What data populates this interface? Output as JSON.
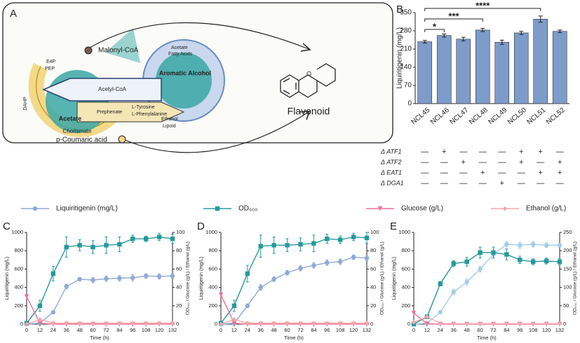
{
  "diagram": {
    "panel": "A",
    "labels": [
      "Malonyl-CoA",
      "E4P",
      "PEP",
      "DAHP",
      "Chorismate",
      "Acetate",
      "Acetyl-CoA",
      "Prephenate",
      "L-Tyrosine",
      "L-Phenylalanine",
      "Aromatic Alcohol",
      "Acetate",
      "Fatty Acids",
      "Ethanol",
      "Lipoid",
      "p-Coumaric acid",
      "Flavonoid"
    ]
  },
  "chart_data": [
    {
      "type": "bar",
      "panel": "B",
      "y_label": "Liquiritigenin (mg/L)",
      "categories": [
        "NCL45",
        "NCL46",
        "NCL47",
        "NCL48",
        "NCL49",
        "NCL50",
        "NCL51",
        "NCL52"
      ],
      "values": [
        238,
        262,
        248,
        283,
        236,
        272,
        325,
        278
      ],
      "errors": [
        5,
        6,
        7,
        6,
        8,
        6,
        12,
        5
      ],
      "color": "#7d9cc9",
      "ylim": [
        0,
        350
      ],
      "yticks": [
        0,
        70,
        140,
        210,
        280,
        350
      ],
      "significance": [
        {
          "text": "*",
          "from": 0,
          "to": 1
        },
        {
          "text": "***",
          "from": 0,
          "to": 3
        },
        {
          "text": "****",
          "from": 0,
          "to": 6
        }
      ],
      "genotype": [
        {
          "label": "Δ ATF1",
          "marks": [
            "—",
            "+",
            "—",
            "—",
            "—",
            "+",
            "+",
            "—"
          ]
        },
        {
          "label": "Δ ATF2",
          "marks": [
            "—",
            "—",
            "+",
            "—",
            "—",
            "+",
            "—",
            "+"
          ]
        },
        {
          "label": "Δ EAT1",
          "marks": [
            "—",
            "—",
            "—",
            "+",
            "—",
            "—",
            "+",
            "+"
          ]
        },
        {
          "label": "Δ DGA1",
          "marks": [
            "—",
            "—",
            "—",
            "—",
            "+",
            "—",
            "—",
            "—"
          ]
        }
      ]
    },
    {
      "type": "line",
      "panel": "C",
      "x_label": "Time (h)",
      "y_label": "Liquiritigenin (mg/L)",
      "y2_label": "OD₆₀₀ / Glucose (g/L) / Ethanol (g/L)",
      "x": [
        0,
        12,
        24,
        36,
        48,
        60,
        72,
        84,
        96,
        108,
        120,
        132
      ],
      "xlim": [
        0,
        132
      ],
      "xticks": [
        0,
        12,
        24,
        36,
        48,
        60,
        72,
        84,
        96,
        108,
        120,
        132
      ],
      "ylim": [
        0,
        1000
      ],
      "yticks": [
        0,
        200,
        400,
        600,
        800,
        1000
      ],
      "y2lim": [
        0,
        100
      ],
      "y2ticks": [
        0,
        20,
        40,
        60,
        80,
        100
      ],
      "series": [
        {
          "name": "Liquiritigenin (mg/L)",
          "color": "#8fa9d6",
          "marker": "circle",
          "values": [
            0,
            10,
            130,
            410,
            490,
            480,
            495,
            500,
            505,
            525,
            520,
            525
          ],
          "errors": [
            0,
            5,
            15,
            25,
            20,
            30,
            30,
            30,
            35,
            25,
            30,
            30
          ]
        },
        {
          "name": "OD₆₀₀",
          "color": "#27999b",
          "marker": "square",
          "axis": "y2",
          "values": [
            1,
            20,
            55,
            84,
            86,
            84,
            86,
            87,
            93,
            93,
            95,
            93
          ],
          "errors": [
            0,
            6,
            8,
            11,
            6,
            7,
            9,
            8,
            4,
            3,
            4,
            5
          ]
        },
        {
          "name": "Glucose (g/L)",
          "color": "#f06f96",
          "marker": "triangle",
          "axis": "y2",
          "values": [
            30,
            1,
            0,
            0,
            0,
            0,
            0,
            0,
            0,
            0,
            0,
            0
          ]
        },
        {
          "name": "Ethanol (g/L)",
          "color": "#f5a5aa",
          "marker": "diamond",
          "axis": "y2",
          "values": [
            0,
            5,
            1,
            1,
            1,
            1,
            1,
            1,
            1,
            1,
            1,
            1
          ]
        }
      ]
    },
    {
      "type": "line",
      "panel": "D",
      "x_label": "Time (h)",
      "y_label": "Liquiritigenin (mg/L)",
      "y2_label": "OD₆₀₀ / Glucose (g/L) / Ethanol (g/L)",
      "x": [
        0,
        12,
        24,
        36,
        48,
        60,
        72,
        84,
        96,
        108,
        120,
        132
      ],
      "xlim": [
        0,
        132
      ],
      "xticks": [
        0,
        12,
        24,
        36,
        48,
        60,
        72,
        84,
        96,
        108,
        120,
        132
      ],
      "ylim": [
        0,
        1000
      ],
      "yticks": [
        0,
        200,
        400,
        600,
        800,
        1000
      ],
      "y2lim": [
        0,
        100
      ],
      "y2ticks": [
        0,
        20,
        40,
        60,
        80,
        100
      ],
      "series": [
        {
          "color": "#8fa9d6",
          "marker": "circle",
          "values": [
            0,
            10,
            200,
            400,
            490,
            560,
            610,
            640,
            670,
            680,
            730,
            720
          ],
          "errors": [
            0,
            5,
            20,
            30,
            25,
            25,
            30,
            30,
            30,
            30,
            25,
            30
          ]
        },
        {
          "color": "#27999b",
          "marker": "square",
          "axis": "y2",
          "values": [
            1,
            20,
            55,
            85,
            86,
            86,
            87,
            88,
            93,
            92,
            95,
            94
          ],
          "errors": [
            0,
            6,
            9,
            12,
            9,
            7,
            7,
            9,
            5,
            4,
            4,
            6
          ]
        },
        {
          "color": "#f06f96",
          "marker": "triangle",
          "axis": "y2",
          "values": [
            32,
            1,
            0,
            0,
            0,
            0,
            0,
            0,
            0,
            0,
            0,
            0
          ]
        },
        {
          "color": "#f5a5aa",
          "marker": "diamond",
          "axis": "y2",
          "values": [
            0,
            5,
            1,
            1,
            1,
            1,
            1,
            1,
            1,
            1,
            1,
            1
          ]
        }
      ]
    },
    {
      "type": "line",
      "panel": "E",
      "x_label": "Time (h)",
      "y_label": "Liquiritigenin (mg/L)",
      "y2_label": "OD₆₀₀ / Glucose (g/L) / Ethanol (g/L)",
      "x": [
        0,
        12,
        24,
        36,
        48,
        60,
        72,
        84,
        96,
        108,
        120,
        132
      ],
      "xlim": [
        0,
        132
      ],
      "xticks": [
        0,
        12,
        24,
        36,
        48,
        60,
        72,
        84,
        96,
        108,
        120,
        132
      ],
      "ylim": [
        0,
        1000
      ],
      "yticks": [
        0,
        200,
        400,
        600,
        800,
        1000
      ],
      "y2lim": [
        0,
        250
      ],
      "y2ticks": [
        0,
        50,
        100,
        150,
        200,
        250
      ],
      "series": [
        {
          "color": "#a3cdea",
          "marker": "circle",
          "values": [
            0,
            10,
            130,
            350,
            460,
            600,
            760,
            870,
            860,
            870,
            860,
            860
          ],
          "errors": [
            0,
            5,
            15,
            30,
            35,
            30,
            40,
            30,
            35,
            30,
            25,
            20
          ]
        },
        {
          "color": "#27999b",
          "marker": "square",
          "axis": "y2",
          "values": [
            0,
            20,
            110,
            165,
            170,
            195,
            195,
            190,
            175,
            170,
            172,
            170
          ],
          "errors": [
            0,
            4,
            6,
            8,
            12,
            15,
            15,
            15,
            10,
            8,
            8,
            8
          ]
        },
        {
          "color": "#f06f96",
          "marker": "triangle",
          "axis": "y2",
          "values": [
            30,
            1,
            0,
            0,
            0,
            0,
            0,
            0,
            0,
            0,
            0,
            0
          ]
        },
        {
          "color": "#f5a5aa",
          "marker": "diamond",
          "axis": "y2",
          "values": [
            5,
            20,
            2,
            1,
            1,
            1,
            1,
            1,
            1,
            1,
            1,
            1
          ]
        }
      ]
    }
  ]
}
